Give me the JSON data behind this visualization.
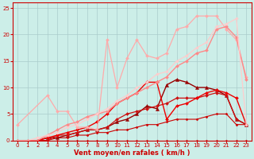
{
  "bg_color": "#cceee8",
  "grid_color": "#aacccc",
  "xlabel": "Vent moyen/en rafales ( km/h )",
  "xlabel_color": "#cc0000",
  "tick_color": "#cc0000",
  "xlim": [
    -0.5,
    23.5
  ],
  "ylim": [
    0,
    26
  ],
  "yticks": [
    0,
    5,
    10,
    15,
    20,
    25
  ],
  "xticks": [
    0,
    1,
    2,
    3,
    4,
    5,
    6,
    7,
    8,
    9,
    10,
    11,
    12,
    13,
    14,
    15,
    16,
    17,
    18,
    19,
    20,
    21,
    22,
    23
  ],
  "lines": [
    {
      "x": [
        0,
        1,
        2,
        3,
        4,
        5,
        6,
        7,
        8,
        9,
        10,
        11,
        12,
        13,
        14,
        15,
        16,
        17,
        18,
        19,
        20,
        21,
        22,
        23
      ],
      "y": [
        0,
        0,
        0,
        0,
        0,
        0,
        0,
        0,
        0,
        0,
        0,
        0,
        0,
        0,
        0,
        0,
        0,
        0,
        0,
        0,
        0,
        0,
        0,
        0
      ],
      "color": "#dd0000",
      "lw": 0.8,
      "marker": "D",
      "ms": 1.5
    },
    {
      "x": [
        0,
        1,
        2,
        3,
        4,
        5,
        6,
        7,
        8,
        9,
        10,
        11,
        12,
        13,
        14,
        15,
        16,
        17,
        18,
        19,
        20,
        21,
        22,
        23
      ],
      "y": [
        0,
        0,
        0,
        0,
        0.5,
        0.5,
        1,
        1,
        1.5,
        1.5,
        2,
        2,
        2.5,
        3,
        3,
        3.5,
        4,
        4,
        4,
        4.5,
        5,
        5,
        3,
        3
      ],
      "color": "#cc0000",
      "lw": 0.8,
      "marker": "D",
      "ms": 1.5
    },
    {
      "x": [
        0,
        1,
        2,
        3,
        4,
        5,
        6,
        7,
        8,
        9,
        10,
        11,
        12,
        13,
        14,
        15,
        16,
        17,
        18,
        19,
        20,
        21,
        22,
        23
      ],
      "y": [
        0,
        0,
        0,
        0.5,
        0.5,
        1,
        1.5,
        2,
        2,
        2.5,
        3.5,
        4,
        5,
        6.5,
        6,
        10.5,
        11.5,
        11,
        10,
        10,
        9.5,
        8.5,
        4,
        3
      ],
      "color": "#990000",
      "lw": 1.0,
      "marker": "^",
      "ms": 3.0
    },
    {
      "x": [
        0,
        1,
        2,
        3,
        4,
        5,
        6,
        7,
        8,
        9,
        10,
        11,
        12,
        13,
        14,
        15,
        16,
        17,
        18,
        19,
        20,
        21,
        22,
        23
      ],
      "y": [
        0,
        0,
        0,
        0,
        1,
        1,
        1.5,
        2,
        2,
        2.5,
        4,
        5,
        5.5,
        6,
        6.5,
        7,
        8,
        8,
        8,
        8.5,
        9,
        8.5,
        4,
        3
      ],
      "color": "#cc1111",
      "lw": 0.9,
      "marker": "D",
      "ms": 2.0
    },
    {
      "x": [
        0,
        1,
        2,
        3,
        4,
        5,
        6,
        7,
        8,
        9,
        10,
        11,
        12,
        13,
        14,
        15,
        16,
        17,
        18,
        19,
        20,
        21,
        22,
        23
      ],
      "y": [
        0,
        0,
        0,
        0.5,
        1,
        1.5,
        2,
        2.5,
        3.5,
        5,
        7,
        8,
        9,
        11,
        11,
        4,
        6.5,
        7,
        8,
        9,
        9.5,
        9,
        8,
        3
      ],
      "color": "#ee0000",
      "lw": 1.0,
      "marker": "D",
      "ms": 2.0
    },
    {
      "x": [
        0,
        3,
        4,
        5,
        6,
        7,
        8,
        9,
        10,
        11,
        12,
        13,
        14,
        15,
        16,
        17,
        18,
        19,
        20,
        21,
        22,
        23
      ],
      "y": [
        3,
        8.5,
        5.5,
        5.5,
        2.5,
        2.5,
        2,
        19,
        10,
        15.5,
        19,
        16,
        15.5,
        16.5,
        21,
        21.5,
        23.5,
        23.5,
        23.5,
        21,
        19,
        12
      ],
      "color": "#ffaaaa",
      "lw": 0.9,
      "marker": "D",
      "ms": 2.0
    },
    {
      "x": [
        0,
        1,
        2,
        3,
        4,
        5,
        6,
        7,
        8,
        9,
        10,
        11,
        12,
        13,
        14,
        15,
        16,
        17,
        18,
        19,
        20,
        21,
        22,
        23
      ],
      "y": [
        0,
        0,
        0,
        1,
        2,
        3,
        3.5,
        4.5,
        5,
        5.5,
        7,
        8,
        9,
        10,
        11,
        12,
        14,
        15,
        16.5,
        17,
        21,
        21.5,
        19.5,
        11.5
      ],
      "color": "#ff8888",
      "lw": 1.0,
      "marker": "D",
      "ms": 2.0
    },
    {
      "x": [
        0,
        1,
        2,
        3,
        4,
        5,
        6,
        7,
        8,
        9,
        10,
        11,
        12,
        13,
        14,
        15,
        16,
        17,
        18,
        19,
        20,
        21,
        22,
        23
      ],
      "y": [
        0,
        0,
        0.5,
        1,
        1.5,
        2.5,
        3,
        4,
        5,
        6,
        7.5,
        8.5,
        10,
        11,
        12.5,
        13,
        15,
        16,
        17.5,
        18.5,
        21.5,
        22,
        23,
        3
      ],
      "color": "#ffcccc",
      "lw": 0.9,
      "marker": "D",
      "ms": 1.8
    }
  ]
}
